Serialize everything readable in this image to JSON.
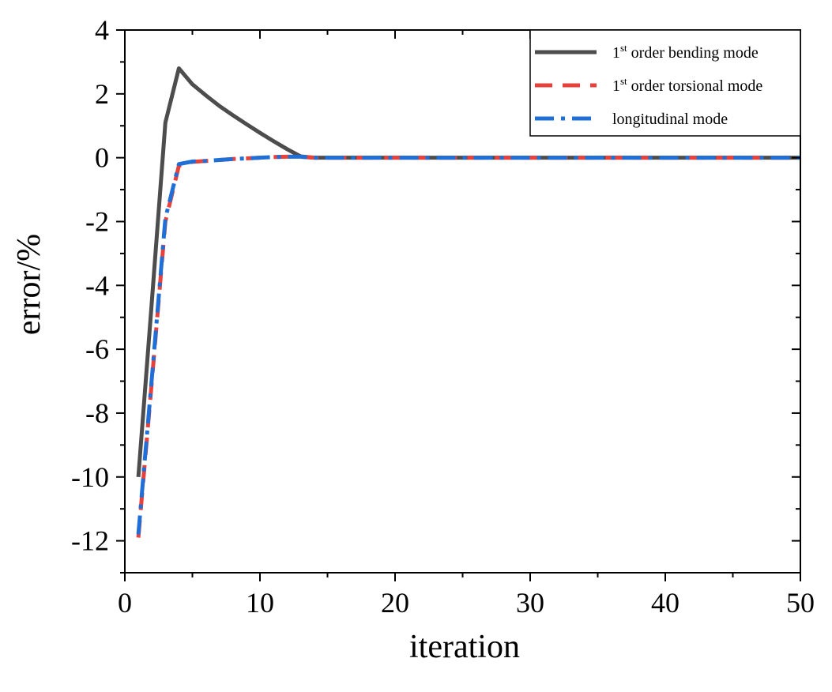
{
  "chart_data": {
    "type": "line",
    "title": "",
    "xlabel": "iteration",
    "ylabel": "error/%",
    "xlim": [
      0,
      50
    ],
    "ylim": [
      -13,
      4
    ],
    "xticks": [
      0,
      10,
      20,
      30,
      40,
      50
    ],
    "yticks": [
      -12,
      -10,
      -8,
      -6,
      -4,
      -2,
      0,
      2,
      4
    ],
    "grid": false,
    "legend_position": "top-right",
    "series": [
      {
        "name": "1st order bending mode",
        "label_base": "1",
        "label_sup": "st",
        "label_rest": " order bending mode",
        "color": "#4d4d4d",
        "style": "solid",
        "x": [
          1,
          2,
          3,
          4,
          5,
          6,
          7,
          8,
          9,
          10,
          11,
          12,
          13,
          14,
          15,
          20,
          30,
          40,
          50
        ],
        "y": [
          -10.0,
          -4.5,
          1.1,
          2.8,
          2.3,
          1.95,
          1.62,
          1.33,
          1.05,
          0.78,
          0.52,
          0.27,
          0.04,
          0.0,
          0.0,
          0.0,
          0.0,
          0.0,
          0.0
        ]
      },
      {
        "name": "1st order torsional mode",
        "label_base": "1",
        "label_sup": "st",
        "label_rest": " order torsional mode",
        "color": "#e8413c",
        "style": "dash",
        "x": [
          1,
          2,
          3,
          4,
          5,
          6,
          7,
          8,
          9,
          10,
          11,
          12,
          13,
          14,
          20,
          30,
          40,
          50
        ],
        "y": [
          -11.9,
          -7.0,
          -2.0,
          -0.25,
          -0.13,
          -0.1,
          -0.07,
          -0.04,
          -0.02,
          0.0,
          0.02,
          0.03,
          0.03,
          0.0,
          0.0,
          0.0,
          0.0,
          0.0
        ]
      },
      {
        "name": "longitudinal mode",
        "label_base": "longitudinal mode",
        "label_sup": "",
        "label_rest": "",
        "color": "#1f6fd6",
        "style": "dashdot",
        "x": [
          1,
          2,
          3,
          4,
          5,
          6,
          7,
          8,
          9,
          10,
          11,
          12,
          13,
          14,
          20,
          30,
          40,
          50
        ],
        "y": [
          -11.8,
          -6.9,
          -1.9,
          -0.2,
          -0.12,
          -0.1,
          -0.07,
          -0.04,
          -0.02,
          0.0,
          0.02,
          0.03,
          0.03,
          0.0,
          0.0,
          0.0,
          0.0,
          0.0
        ]
      }
    ]
  }
}
